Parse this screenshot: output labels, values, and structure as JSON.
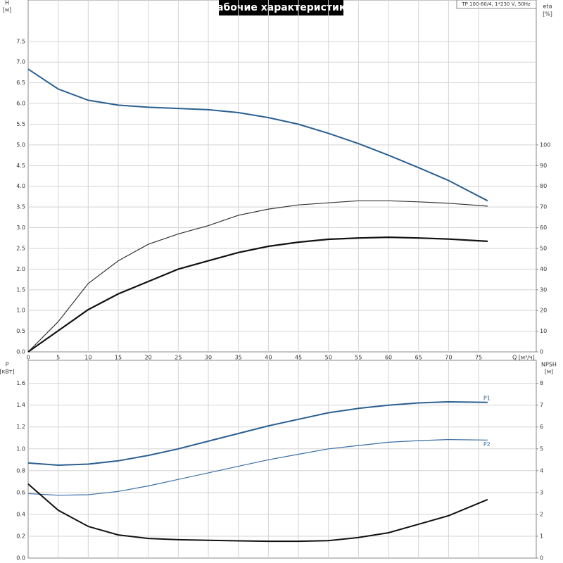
{
  "chart_data": [
    {
      "type": "line",
      "title": "Рабочие характеристики",
      "annotation": "TP 100-60/4, 1*230 V, 50Hz",
      "ylabel": "H",
      "yunit": "[м]",
      "y2label": "eta",
      "y2unit": "[%]",
      "xlabel": "Q [м³/ч]",
      "x": [
        0,
        5,
        10,
        15,
        20,
        25,
        30,
        35,
        40,
        45,
        50,
        55,
        60,
        65,
        70,
        76.5
      ],
      "xlim": [
        0,
        84.6
      ],
      "xticks": [
        0,
        5,
        10,
        15,
        20,
        25,
        30,
        35,
        40,
        45,
        50,
        55,
        60,
        65,
        70,
        75
      ],
      "ylim": [
        0,
        8.5
      ],
      "yticks": [
        {
          "value": 0,
          "label": "0.0"
        },
        0.5,
        {
          "value": 1,
          "label": "1.0"
        },
        1.5,
        {
          "value": 2,
          "label": "2.0"
        },
        2.5,
        {
          "value": 3,
          "label": "3.0"
        },
        3.5,
        {
          "value": 4,
          "label": "4.0"
        },
        4.5,
        {
          "value": 5,
          "label": "5.0"
        },
        5.5,
        {
          "value": 6,
          "label": "6.0"
        },
        6.5,
        {
          "value": 7,
          "label": "7.0"
        },
        7.5
      ],
      "y2lim": [
        0,
        170
      ],
      "y2ticks": [
        0,
        10,
        20,
        30,
        40,
        50,
        60,
        70,
        80,
        90,
        100
      ],
      "grid": true,
      "series": [
        {
          "color": "#2b5f91",
          "line_width": 2,
          "values": [
            6.83,
            6.35,
            6.08,
            5.96,
            5.91,
            5.88,
            5.85,
            5.78,
            5.66,
            5.5,
            5.28,
            5.03,
            4.75,
            4.45,
            4.14,
            3.65
          ]
        },
        {
          "color": "#333333",
          "line_width": 1.2,
          "axis": "y2",
          "values": [
            0,
            14.6,
            33,
            44,
            52,
            57,
            61,
            66,
            69,
            71,
            72,
            73,
            73,
            72.5,
            71.8,
            70.4
          ]
        },
        {
          "color": "#111111",
          "line_width": 2.2,
          "axis": "y2",
          "values": [
            0,
            10.2,
            20.4,
            28,
            34,
            40,
            44,
            48,
            51,
            53,
            54.4,
            55,
            55.4,
            55,
            54.5,
            53.4
          ]
        }
      ]
    },
    {
      "type": "line",
      "ylabel": "P",
      "yunit": "[кВт]",
      "y2label": "NPSH",
      "y2unit": "[м]",
      "x": [
        0,
        5,
        10,
        15,
        20,
        25,
        30,
        35,
        40,
        45,
        50,
        55,
        60,
        65,
        70,
        76.5
      ],
      "xlim": [
        0,
        84.6
      ],
      "ylim": [
        0,
        1.81
      ],
      "yticks": [
        {
          "value": 0,
          "label": "0.0"
        },
        0.2,
        0.4,
        0.6,
        0.8,
        {
          "value": 1,
          "label": "1.0"
        },
        1.2,
        1.4,
        1.6
      ],
      "y2lim": [
        0,
        9.05
      ],
      "y2ticks": [
        0,
        1,
        2,
        3,
        4,
        5,
        6,
        7,
        8
      ],
      "grid": true,
      "series": [
        {
          "name": "P1",
          "color": "#2b5f91",
          "line_width": 2,
          "values": [
            0.87,
            0.85,
            0.86,
            0.89,
            0.94,
            1.0,
            1.07,
            1.14,
            1.21,
            1.27,
            1.33,
            1.37,
            1.4,
            1.42,
            1.43,
            1.425
          ]
        },
        {
          "name": "P2",
          "color": "#3a6ea5",
          "line_width": 1.2,
          "values": [
            0.59,
            0.575,
            0.58,
            0.61,
            0.66,
            0.72,
            0.78,
            0.84,
            0.9,
            0.95,
            1.0,
            1.03,
            1.06,
            1.075,
            1.085,
            1.08
          ]
        },
        {
          "color": "#111111",
          "line_width": 2,
          "axis": "y2",
          "values": [
            3.39,
            2.19,
            1.45,
            1.06,
            0.9,
            0.84,
            0.81,
            0.79,
            0.77,
            0.77,
            0.8,
            0.94,
            1.16,
            1.55,
            1.94,
            2.68
          ]
        }
      ]
    }
  ]
}
